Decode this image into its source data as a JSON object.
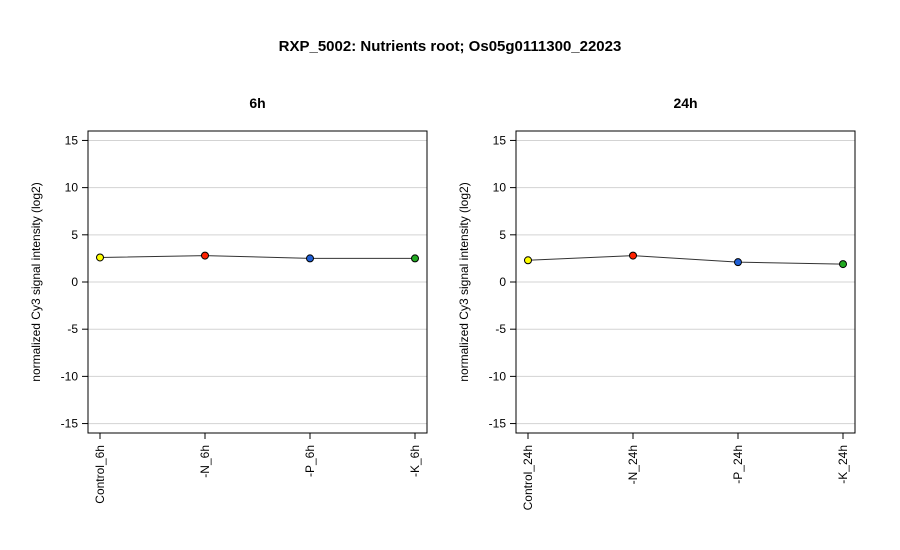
{
  "title": "RXP_5002: Nutrients root; Os05g0111300_22023",
  "chart_data": [
    {
      "type": "line",
      "title": "6h",
      "ylabel": "normalized Cy3 signal intensity (log2)",
      "xlabel": "",
      "categories": [
        "Control_6h",
        "-N_6h",
        "-P_6h",
        "-K_6h"
      ],
      "values": [
        2.6,
        2.8,
        2.5,
        2.5
      ],
      "point_colors": [
        "#ffff00",
        "#ff2200",
        "#1f5fd6",
        "#22aa22"
      ],
      "ylim": [
        -16,
        16
      ],
      "yticks": [
        -15,
        -10,
        -5,
        0,
        5,
        10,
        15
      ],
      "ytick_labels": [
        "-15",
        "-10",
        "-5",
        "0",
        "5",
        "10",
        "15"
      ],
      "grid": true
    },
    {
      "type": "line",
      "title": "24h",
      "ylabel": "normalized Cy3 signal intensity (log2)",
      "xlabel": "",
      "categories": [
        "Control_24h",
        "-N_24h",
        "-P_24h",
        "-K_24h"
      ],
      "values": [
        2.3,
        2.8,
        2.1,
        1.9
      ],
      "point_colors": [
        "#ffff00",
        "#ff2200",
        "#1f5fd6",
        "#22aa22"
      ],
      "ylim": [
        -16,
        16
      ],
      "yticks": [
        -15,
        -10,
        -5,
        0,
        5,
        10,
        15
      ],
      "ytick_labels": [
        "-15",
        "-10",
        "-5",
        "0",
        "5",
        "10",
        "15"
      ],
      "grid": true
    }
  ]
}
